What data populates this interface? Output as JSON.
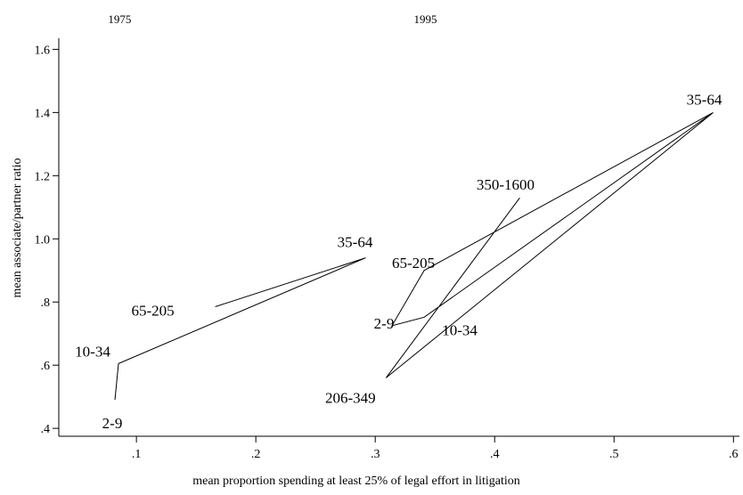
{
  "chart_data": {
    "type": "line",
    "xlabel": "mean proportion spending at least 25% of legal effort in litigation",
    "ylabel": "mean associate/partner ratio",
    "xlim": [
      0.035,
      0.605
    ],
    "ylim": [
      0.375,
      1.635
    ],
    "xticks": [
      {
        "value": 0.1,
        "label": ".1"
      },
      {
        "value": 0.2,
        "label": ".2"
      },
      {
        "value": 0.3,
        "label": ".3"
      },
      {
        "value": 0.4,
        "label": ".4"
      },
      {
        "value": 0.5,
        "label": ".5"
      },
      {
        "value": 0.6,
        "label": ".6"
      }
    ],
    "yticks": [
      {
        "value": 0.4,
        "label": ".4"
      },
      {
        "value": 0.6,
        "label": ".6"
      },
      {
        "value": 0.8,
        "label": ".8"
      },
      {
        "value": 1.0,
        "label": "1.0"
      },
      {
        "value": 1.2,
        "label": "1.2"
      },
      {
        "value": 1.4,
        "label": "1.4"
      },
      {
        "value": 1.6,
        "label": "1.6"
      }
    ],
    "period_labels": [
      {
        "text": "1975",
        "x": 0.086
      },
      {
        "text": "1995",
        "x": 0.342
      }
    ],
    "grid": false,
    "series": [
      {
        "period": "1975",
        "points": [
          {
            "label": "2-9",
            "x": 0.082,
            "y": 0.49
          },
          {
            "label": "10-34",
            "x": 0.085,
            "y": 0.605
          },
          {
            "label": "35-64",
            "x": 0.292,
            "y": 0.94
          },
          {
            "label": "65-205",
            "x": 0.166,
            "y": 0.785
          }
        ]
      },
      {
        "period": "1995",
        "points": [
          {
            "label": "350-1600",
            "x": 0.421,
            "y": 1.13
          },
          {
            "label": "206-349",
            "x": 0.309,
            "y": 0.56
          },
          {
            "label": "35-64",
            "x": 0.583,
            "y": 1.4
          },
          {
            "label": "65-205",
            "x": 0.341,
            "y": 0.9
          },
          {
            "label": "2-9",
            "x": 0.314,
            "y": 0.725
          },
          {
            "label": "10-34",
            "x": 0.341,
            "y": 0.752
          },
          {
            "label": "35-64",
            "x": 0.583,
            "y": 1.4
          },
          {
            "label": "206-349",
            "x": 0.309,
            "y": 0.56
          }
        ]
      }
    ]
  }
}
